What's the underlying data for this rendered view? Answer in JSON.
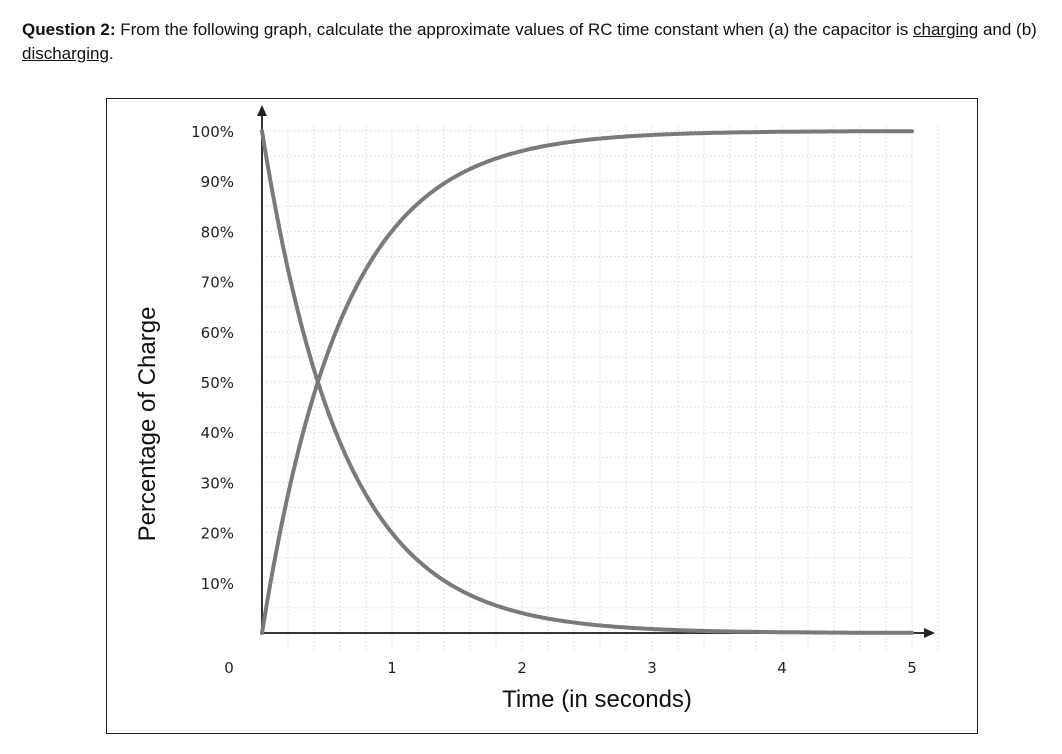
{
  "question": {
    "label": "Question 2:",
    "text_before": " From the following graph, calculate the approximate values of RC time constant when (a) the capacitor is ",
    "charging": "charging",
    "text_mid": " and (b) ",
    "discharging": "discharging",
    "text_end": "."
  },
  "chart_data": {
    "type": "line",
    "title": "",
    "xlabel": "Time (in seconds)",
    "ylabel": "Percentage of Charge",
    "x_ticks": [
      "0",
      "1",
      "2",
      "3",
      "4",
      "5"
    ],
    "y_ticks": [
      "10%",
      "20%",
      "30%",
      "40%",
      "50%",
      "60%",
      "70%",
      "80%",
      "90%",
      "100%"
    ],
    "xlim": [
      0,
      5.5
    ],
    "ylim": [
      0,
      100
    ],
    "grid": true,
    "series": [
      {
        "x": [
          0,
          0.25,
          0.5,
          0.75,
          1,
          1.25,
          1.5,
          1.75,
          2,
          2.5,
          3,
          3.5,
          4,
          4.5,
          5
        ],
        "y": [
          0,
          33,
          55,
          70,
          80,
          86,
          91,
          94,
          96,
          98,
          99,
          99.5,
          99.8,
          99.9,
          100
        ]
      },
      {
        "x": [
          0,
          0.25,
          0.5,
          0.75,
          1,
          1.25,
          1.5,
          1.75,
          2,
          2.5,
          3,
          3.5,
          4,
          4.5,
          5
        ],
        "y": [
          100,
          67,
          45,
          30,
          20,
          14,
          9,
          6,
          4,
          2,
          1,
          0.5,
          0.2,
          0.1,
          0
        ]
      }
    ],
    "colors": {
      "curve": "#7a7a7a",
      "grid": "#e2e2e2",
      "axis": "#333333"
    }
  }
}
